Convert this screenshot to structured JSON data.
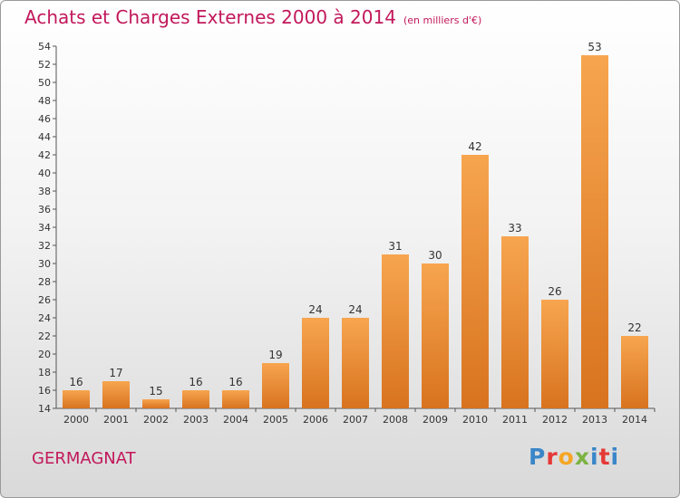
{
  "header": {
    "title": "Achats et Charges Externes 2000 à 2014",
    "unit": "(en milliers d'€)"
  },
  "footer": {
    "commune": "GERMAGNAT",
    "logo": {
      "p": "P",
      "r": "r",
      "o": "o",
      "x": "x",
      "i1": "i",
      "t": "t",
      "i2": "i"
    }
  },
  "colors": {
    "title": "#c2185b",
    "bar_light": "#f7a54f",
    "bar_dark": "#d8731f",
    "logo": [
      "#3a86c8",
      "#e53935",
      "#f5a623",
      "#7cb342",
      "#3a86c8",
      "#e53935",
      "#3a86c8"
    ]
  },
  "chart_data": {
    "type": "bar",
    "title": "Achats et Charges Externes 2000 à 2014",
    "categories": [
      "2000",
      "2001",
      "2002",
      "2003",
      "2004",
      "2005",
      "2006",
      "2007",
      "2008",
      "2009",
      "2010",
      "2011",
      "2012",
      "2013",
      "2014"
    ],
    "values": [
      16,
      17,
      15,
      16,
      16,
      19,
      24,
      24,
      31,
      30,
      42,
      33,
      26,
      53,
      22
    ],
    "ylim": [
      14,
      54
    ],
    "yticks": [
      14,
      16,
      18,
      20,
      22,
      24,
      26,
      28,
      30,
      32,
      34,
      36,
      38,
      40,
      42,
      44,
      46,
      48,
      50,
      52,
      54
    ],
    "grid": false,
    "legend": "none"
  }
}
